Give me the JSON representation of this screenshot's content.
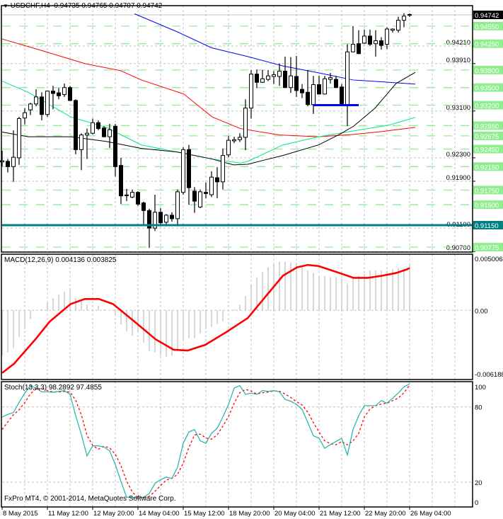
{
  "header": {
    "symbol": "USDCHF,H4",
    "open": "0.94735",
    "high": "0.94765",
    "low": "0.94707",
    "close": "0.94742"
  },
  "macd_legend": "MACD(12,26,9) 0.004136 0.003825",
  "stoch_legend": "Stoch(13,3,3) 98.2892 97.4855",
  "copyright": "FxPro MT4, © 2001-2014, MetaQuotes Software Corp.",
  "colors": {
    "bull_body": "#ffffff",
    "bear_body": "#000000",
    "ma_blue": "#0000ff",
    "ma_red": "#ff0000",
    "ma_green": "#00e68a",
    "ma_black": "#000000",
    "level_line": "#90ee90",
    "support_line": "#008080",
    "box_line": "#0000ff",
    "macd_hist": "#c0c0c0",
    "macd_signal": "#ff0000",
    "stoch_main": "#20b2aa",
    "stoch_signal": "#ff0000",
    "grid": "#c0c0c0"
  },
  "chart_data": [
    {
      "type": "candlestick",
      "pane": "main",
      "ylim": [
        0.907,
        0.949
      ],
      "x_labels": [
        "8 May 2015",
        "11 May 12:00",
        "12 May 20:00",
        "14 May 04:00",
        "15 May 12:00",
        "18 May 20:00",
        "20 May 04:00",
        "21 May 12:00",
        "22 May 20:00",
        "26 May 04:00"
      ],
      "x_label_every_bars": 8,
      "y_ticks": [
        "0.94210",
        "0.93910",
        "0.93100",
        "0.92300",
        "0.91900",
        "0.91100",
        "0.90700"
      ],
      "current_price": "0.94742",
      "levels": [
        "0.94550",
        "0.94250",
        "0.93800",
        "0.93500",
        "0.93200",
        "0.92850",
        "0.92675",
        "0.92450",
        "0.92150",
        "0.91750",
        "0.91500",
        "0.90775"
      ],
      "support_level": "0.91150",
      "box_level": {
        "price": 0.932,
        "from_bar": 55,
        "to_bar": 63
      },
      "ohlc": [
        [
          0.9223,
          0.9242,
          0.9215,
          0.9225
        ],
        [
          0.9224,
          0.9228,
          0.9205,
          0.9215
        ],
        [
          0.9215,
          0.9277,
          0.9189,
          0.9231
        ],
        [
          0.923,
          0.93,
          0.9218,
          0.9297
        ],
        [
          0.9298,
          0.9315,
          0.9287,
          0.9307
        ],
        [
          0.9312,
          0.9324,
          0.9303,
          0.9322
        ],
        [
          0.9322,
          0.9347,
          0.9318,
          0.9334
        ],
        [
          0.9334,
          0.9342,
          0.9294,
          0.9304
        ],
        [
          0.9304,
          0.9345,
          0.93,
          0.9344
        ],
        [
          0.9344,
          0.9353,
          0.9313,
          0.934
        ],
        [
          0.9341,
          0.9349,
          0.933,
          0.9336
        ],
        [
          0.9338,
          0.9357,
          0.9334,
          0.935
        ],
        [
          0.935,
          0.9353,
          0.9327,
          0.9328
        ],
        [
          0.9328,
          0.933,
          0.9236,
          0.9244
        ],
        [
          0.9244,
          0.9272,
          0.9209,
          0.9269
        ],
        [
          0.9269,
          0.928,
          0.9228,
          0.9272
        ],
        [
          0.9272,
          0.9297,
          0.927,
          0.929
        ],
        [
          0.929,
          0.9294,
          0.9277,
          0.928
        ],
        [
          0.9281,
          0.9284,
          0.9265,
          0.9266
        ],
        [
          0.9266,
          0.9288,
          0.9247,
          0.9278
        ],
        [
          0.9284,
          0.9288,
          0.9198,
          0.9215
        ],
        [
          0.9217,
          0.923,
          0.9151,
          0.9165
        ],
        [
          0.9165,
          0.9177,
          0.9156,
          0.9166
        ],
        [
          0.9163,
          0.9176,
          0.9161,
          0.9171
        ],
        [
          0.9171,
          0.9173,
          0.9148,
          0.9151
        ],
        [
          0.9153,
          0.9155,
          0.9116,
          0.914
        ],
        [
          0.914,
          0.9143,
          0.9076,
          0.911
        ],
        [
          0.911,
          0.9167,
          0.9105,
          0.9137
        ],
        [
          0.9137,
          0.9144,
          0.9113,
          0.9119
        ],
        [
          0.912,
          0.9134,
          0.9113,
          0.9132
        ],
        [
          0.9132,
          0.9137,
          0.9121,
          0.9126
        ],
        [
          0.9126,
          0.9176,
          0.9113,
          0.9172
        ],
        [
          0.9171,
          0.9248,
          0.9167,
          0.9244
        ],
        [
          0.9244,
          0.9252,
          0.915,
          0.9179
        ],
        [
          0.9173,
          0.918,
          0.9136,
          0.9156
        ],
        [
          0.9146,
          0.9176,
          0.9144,
          0.9172
        ],
        [
          0.9171,
          0.9188,
          0.9161,
          0.9169
        ],
        [
          0.9167,
          0.9207,
          0.9163,
          0.9197
        ],
        [
          0.9196,
          0.9214,
          0.9161,
          0.9189
        ],
        [
          0.9189,
          0.9246,
          0.9176,
          0.9234
        ],
        [
          0.9235,
          0.9267,
          0.9231,
          0.926
        ],
        [
          0.9259,
          0.9266,
          0.9255,
          0.9261
        ],
        [
          0.9261,
          0.9272,
          0.9257,
          0.9265
        ],
        [
          0.9265,
          0.933,
          0.9243,
          0.9315
        ],
        [
          0.9315,
          0.938,
          0.9297,
          0.9373
        ],
        [
          0.9373,
          0.9381,
          0.9349,
          0.9359
        ],
        [
          0.9359,
          0.938,
          0.9358,
          0.9365
        ],
        [
          0.9364,
          0.938,
          0.9361,
          0.937
        ],
        [
          0.9369,
          0.9378,
          0.9356,
          0.9372
        ],
        [
          0.9369,
          0.9391,
          0.9353,
          0.9378
        ],
        [
          0.9378,
          0.9403,
          0.9349,
          0.935
        ],
        [
          0.935,
          0.9402,
          0.9341,
          0.937
        ],
        [
          0.9369,
          0.9404,
          0.9334,
          0.9345
        ],
        [
          0.9347,
          0.9356,
          0.9332,
          0.9341
        ],
        [
          0.9342,
          0.938,
          0.9318,
          0.9321
        ],
        [
          0.9321,
          0.937,
          0.9305,
          0.9355
        ],
        [
          0.9355,
          0.937,
          0.9338,
          0.9339
        ],
        [
          0.9339,
          0.937,
          0.9338,
          0.9365
        ],
        [
          0.9364,
          0.9375,
          0.9357,
          0.9367
        ],
        [
          0.9364,
          0.937,
          0.9349,
          0.935
        ],
        [
          0.9351,
          0.9356,
          0.9318,
          0.9321
        ],
        [
          0.9321,
          0.9424,
          0.9284,
          0.9411
        ],
        [
          0.9411,
          0.9455,
          0.941,
          0.9424
        ],
        [
          0.9425,
          0.9448,
          0.9407,
          0.9408
        ],
        [
          0.9426,
          0.9449,
          0.9425,
          0.9438
        ],
        [
          0.9438,
          0.9449,
          0.9421,
          0.9424
        ],
        [
          0.9425,
          0.9448,
          0.9403,
          0.943
        ],
        [
          0.943,
          0.9436,
          0.9415,
          0.9422
        ],
        [
          0.9424,
          0.9453,
          0.9416,
          0.945
        ],
        [
          0.9448,
          0.9451,
          0.9444,
          0.945
        ],
        [
          0.9448,
          0.9471,
          0.9444,
          0.9465
        ],
        [
          0.9465,
          0.9477,
          0.9453,
          0.9472
        ],
        [
          0.94735,
          0.94765,
          0.94707,
          0.94742
        ]
      ],
      "moving_averages": [
        {
          "color_key": "ma_blue",
          "points": [
            [
              23.4,
              0.9476
            ],
            [
              31,
              0.9445
            ],
            [
              37,
              0.9418
            ],
            [
              43.4,
              0.9403
            ],
            [
              49.6,
              0.9387
            ],
            [
              56,
              0.9375
            ],
            [
              62,
              0.9363
            ],
            [
              68.4,
              0.9359
            ],
            [
              73,
              0.9356
            ]
          ]
        },
        {
          "color_key": "ma_red",
          "points": [
            [
              0,
              0.9433
            ],
            [
              7.1,
              0.9413
            ],
            [
              14.6,
              0.9391
            ],
            [
              20.9,
              0.9379
            ],
            [
              24.6,
              0.9363
            ],
            [
              32.1,
              0.9339
            ],
            [
              37.1,
              0.93
            ],
            [
              42.1,
              0.928
            ],
            [
              49,
              0.9269
            ],
            [
              55.9,
              0.9266
            ],
            [
              62.1,
              0.927
            ],
            [
              67.1,
              0.9275
            ],
            [
              73,
              0.9282
            ]
          ]
        },
        {
          "color_key": "ma_green",
          "points": [
            [
              0,
              0.9361
            ],
            [
              4.6,
              0.9342
            ],
            [
              12.1,
              0.93
            ],
            [
              18.4,
              0.9282
            ],
            [
              24.6,
              0.9252
            ],
            [
              30.9,
              0.924
            ],
            [
              37.1,
              0.9228
            ],
            [
              42.1,
              0.9221
            ],
            [
              43.4,
              0.9224
            ],
            [
              49.6,
              0.9252
            ],
            [
              55.9,
              0.9266
            ],
            [
              62.1,
              0.9276
            ],
            [
              68.4,
              0.9286
            ],
            [
              73,
              0.9299
            ]
          ]
        },
        {
          "color_key": "ma_black",
          "points": [
            [
              0,
              0.9274
            ],
            [
              4.6,
              0.9266
            ],
            [
              12.1,
              0.9266
            ],
            [
              18.4,
              0.9258
            ],
            [
              24.6,
              0.9246
            ],
            [
              30.9,
              0.924
            ],
            [
              37.1,
              0.9228
            ],
            [
              40.9,
              0.9218
            ],
            [
              43.4,
              0.9219
            ],
            [
              47.1,
              0.9228
            ],
            [
              49.6,
              0.9234
            ],
            [
              55.9,
              0.9252
            ],
            [
              59.6,
              0.927
            ],
            [
              62.1,
              0.9284
            ],
            [
              65.9,
              0.9315
            ],
            [
              69.6,
              0.9357
            ],
            [
              73,
              0.9376
            ]
          ]
        }
      ]
    },
    {
      "type": "bar+line",
      "pane": "macd",
      "ylim": [
        -0.006188,
        0.005006
      ],
      "y_ticks": [
        "0.005006",
        "0.00",
        "-0.006188"
      ],
      "histogram": [
        -0.0041,
        -0.0038,
        -0.0034,
        -0.0024,
        -0.0017,
        -0.0008,
        0.0,
        0.0001,
        0.0007,
        0.0011,
        0.0014,
        0.0017,
        0.0019,
        0.0011,
        0.0008,
        0.0005,
        0.0001,
        0.0004,
        0.0001,
        0.0,
        -0.0005,
        -0.0013,
        -0.0019,
        -0.0023,
        -0.002,
        -0.0029,
        -0.0037,
        -0.0038,
        -0.0041,
        -0.0042,
        -0.0041,
        -0.0036,
        -0.0027,
        -0.0025,
        -0.0025,
        -0.0021,
        -0.0017,
        -0.0015,
        -0.0012,
        -0.001,
        0.0,
        0.0001,
        0.0005,
        0.0013,
        0.0023,
        0.003,
        0.0035,
        0.0039,
        0.0042,
        0.0044,
        0.0044,
        0.0043,
        0.0042,
        0.004,
        0.0036,
        0.0034,
        0.0031,
        0.0031,
        0.003,
        0.003,
        0.0029,
        0.0024,
        0.0029,
        0.0031,
        0.0033,
        0.0036,
        0.0036,
        0.0036,
        0.0036,
        0.0037,
        0.0038,
        0.0038,
        0.004136
      ],
      "signal": [
        [
          0,
          -0.00566
        ],
        [
          2.1,
          -0.00483
        ],
        [
          5.9,
          -0.00261
        ],
        [
          8.4,
          -0.00102
        ],
        [
          12.1,
          0.00057
        ],
        [
          14.6,
          0.00102
        ],
        [
          17.1,
          0.00102
        ],
        [
          19.6,
          0.00057
        ],
        [
          23.4,
          -0.00102
        ],
        [
          27.1,
          -0.00261
        ],
        [
          30.3,
          -0.00356
        ],
        [
          32.8,
          -0.00363
        ],
        [
          35.9,
          -0.00312
        ],
        [
          39.6,
          -0.00197
        ],
        [
          43.4,
          -0.0007
        ],
        [
          46.5,
          0.00121
        ],
        [
          49.6,
          0.00312
        ],
        [
          52.1,
          0.00388
        ],
        [
          54,
          0.0041
        ],
        [
          55.9,
          0.004
        ],
        [
          59.6,
          0.00337
        ],
        [
          62.1,
          0.00293
        ],
        [
          64.6,
          0.00293
        ],
        [
          67.1,
          0.00312
        ],
        [
          69.6,
          0.00337
        ],
        [
          71.5,
          0.00369
        ],
        [
          72,
          0.003825
        ]
      ]
    },
    {
      "type": "line",
      "pane": "stochastic",
      "ylim": [
        0,
        100
      ],
      "y_ticks": [
        "100",
        "80",
        "20",
        "0"
      ],
      "levels": [
        80,
        20
      ],
      "main": [
        72,
        74,
        75.5,
        83.6,
        91,
        97,
        95,
        92,
        92,
        91.7,
        92.4,
        93,
        90,
        73,
        58,
        41,
        49,
        49,
        48,
        45,
        34,
        20.6,
        8,
        8,
        7,
        8,
        11,
        19,
        22,
        24,
        23,
        32,
        51,
        60,
        62,
        53,
        51,
        59,
        63,
        72,
        82,
        95,
        97,
        90,
        91,
        90,
        93,
        92.4,
        93,
        92,
        86,
        84.5,
        82,
        78,
        67.6,
        57,
        55,
        47,
        50,
        52.5,
        55,
        41.6,
        62,
        73,
        81,
        81,
        81,
        85,
        83,
        87,
        91,
        96,
        98.2892
      ],
      "signal": [
        62,
        68,
        73.8,
        77.7,
        83.4,
        90.5,
        94.3,
        94.7,
        93,
        91.9,
        92,
        92.4,
        91.8,
        85.3,
        73.7,
        57.3,
        49.3,
        46.3,
        48.7,
        47.3,
        42.3,
        33.2,
        20.9,
        12.2,
        7.7,
        7.7,
        8.7,
        12.7,
        17.3,
        21.7,
        23,
        26.3,
        35.3,
        47.7,
        57.7,
        58.3,
        55.3,
        54.3,
        57.7,
        64.7,
        72.3,
        83,
        91.3,
        94,
        92.7,
        90.3,
        91.3,
        91.8,
        92.8,
        92.5,
        90.3,
        87.5,
        84.2,
        81.5,
        75.9,
        67.5,
        59.9,
        53,
        50.7,
        49.8,
        52.5,
        49.7,
        52.9,
        58.9,
        72,
        78.3,
        81,
        82.3,
        83,
        85,
        87,
        91.3,
        97.4855
      ]
    }
  ]
}
